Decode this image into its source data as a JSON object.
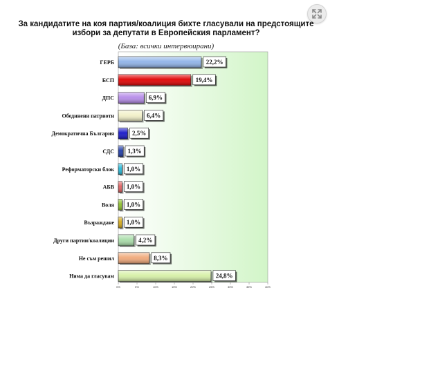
{
  "header": {
    "title": "За кандидатите на коя партия/коалиция бихте гласували на предстоящите избори за депутати в Европейския парламент?",
    "subtitle": "(База: всички интервюирани)",
    "expand_icon": "expand-icon"
  },
  "chart_data": {
    "type": "bar",
    "orientation": "horizontal",
    "title": "За кандидатите на коя партия/коалиция бихте гласували на предстоящите избори за депутати в Европейския парламент?",
    "subtitle": "(База: всички интервюирани)",
    "categories": [
      "ГЕРБ",
      "БСП",
      "ДПС",
      "Обединени патриоти",
      "Демократична България",
      "СДС",
      "Реформаторски блок",
      "АБВ",
      "Воля",
      "Възраждане",
      "Други партии/коалиции",
      "Не съм решил",
      "Няма да гласувам"
    ],
    "values": [
      22.2,
      19.4,
      6.9,
      6.4,
      2.5,
      1.3,
      1.0,
      1.0,
      1.0,
      1.0,
      4.2,
      8.3,
      24.8
    ],
    "value_labels": [
      "22,2%",
      "19,4%",
      "6,9%",
      "6,4%",
      "2,5%",
      "1,3%",
      "1,0%",
      "1,0%",
      "1,0%",
      "1,0%",
      "4,2%",
      "8,3%",
      "24,8%"
    ],
    "bar_colors": [
      "#8fb3e8",
      "#e00000",
      "#b58be8",
      "#f2f0c8",
      "#1515c8",
      "#1f3ca8",
      "#23b8d8",
      "#e06060",
      "#8cbf2a",
      "#d4a818",
      "#a8dca8",
      "#f0a878",
      "#d6f0a6"
    ],
    "xlim": [
      0,
      40
    ],
    "xticks": [
      0,
      5,
      10,
      15,
      20,
      25,
      30,
      35,
      40
    ],
    "xtick_labels": [
      "0%",
      "5%",
      "10%",
      "15%",
      "20%",
      "25%",
      "30%",
      "35%",
      "40%"
    ],
    "grid": false,
    "background": "gradient white to light green"
  }
}
